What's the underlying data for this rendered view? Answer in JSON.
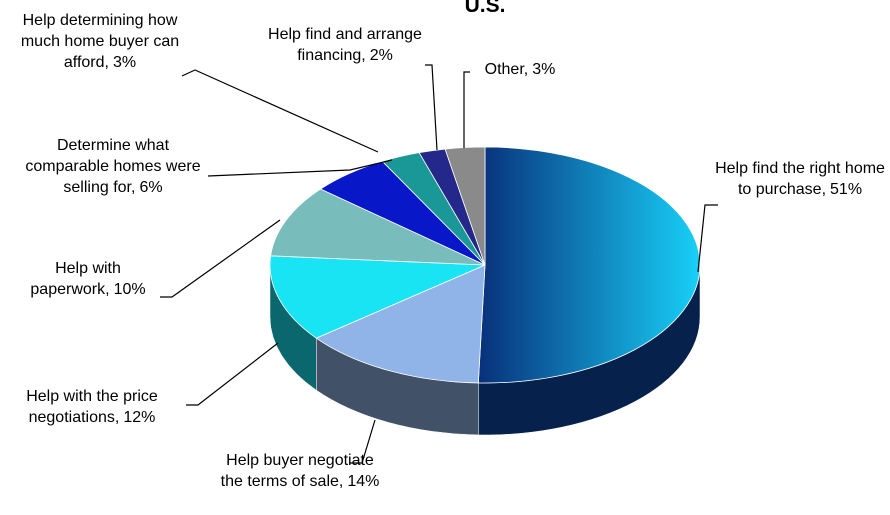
{
  "chart_data": {
    "type": "pie",
    "title": "U.S.",
    "categories": [
      "Help find the right home to purchase,",
      "Help buyer negotiate the terms of sale,",
      "Help with the price negotiations,",
      "Help with paperwork,",
      "Determine what comparable homes were selling for,",
      "Help determining how much home buyer can afford,",
      "Help find and arrange financing,",
      "Other,"
    ],
    "values": [
      51,
      14,
      12,
      10,
      6,
      3,
      2,
      3
    ],
    "value_labels": [
      "51%",
      "14%",
      "12%",
      "10%",
      "6%",
      "3%",
      "2%",
      "3%"
    ],
    "colors": [
      "#0a4aa8",
      "#90b4e8",
      "#18e4f4",
      "#78bcbc",
      "#0818c8",
      "#1a9898",
      "#24288a",
      "#8a8a8a"
    ]
  }
}
